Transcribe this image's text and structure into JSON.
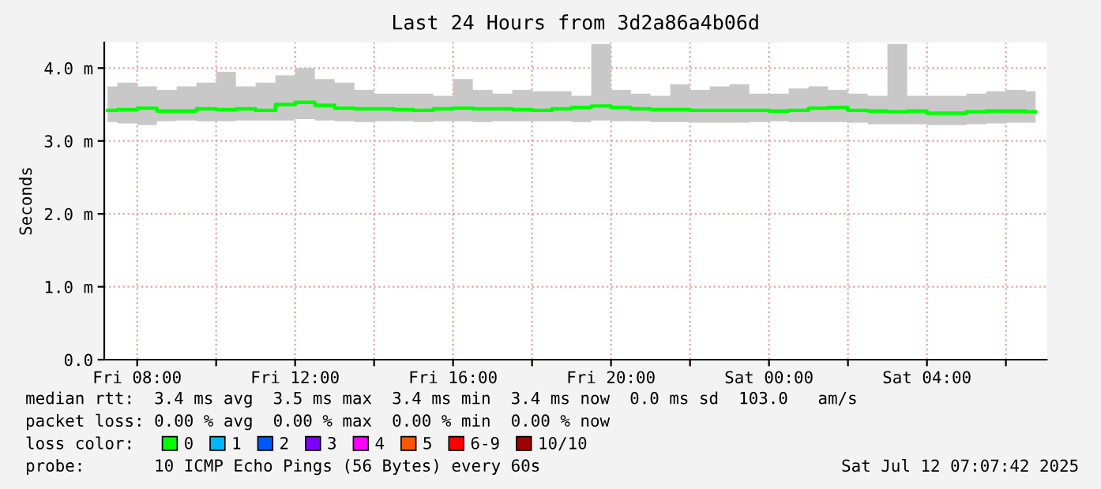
{
  "chart_data": {
    "type": "step",
    "title": "Last 24 Hours from 3d2a86a4b06d",
    "ylabel": "Seconds",
    "x": [
      "2025-07-11T07:15",
      "2025-07-11T07:45",
      "2025-07-11T08:15",
      "2025-07-11T08:45",
      "2025-07-11T09:15",
      "2025-07-11T09:45",
      "2025-07-11T10:15",
      "2025-07-11T10:45",
      "2025-07-11T11:15",
      "2025-07-11T11:45",
      "2025-07-11T12:15",
      "2025-07-11T12:45",
      "2025-07-11T13:15",
      "2025-07-11T13:45",
      "2025-07-11T14:15",
      "2025-07-11T14:45",
      "2025-07-11T15:15",
      "2025-07-11T15:45",
      "2025-07-11T16:15",
      "2025-07-11T16:45",
      "2025-07-11T17:15",
      "2025-07-11T17:45",
      "2025-07-11T18:15",
      "2025-07-11T18:45",
      "2025-07-11T19:15",
      "2025-07-11T19:45",
      "2025-07-11T20:15",
      "2025-07-11T20:45",
      "2025-07-11T21:15",
      "2025-07-11T21:45",
      "2025-07-11T22:15",
      "2025-07-11T22:45",
      "2025-07-11T23:15",
      "2025-07-11T23:45",
      "2025-07-12T00:15",
      "2025-07-12T00:45",
      "2025-07-12T01:15",
      "2025-07-12T01:45",
      "2025-07-12T02:15",
      "2025-07-12T02:45",
      "2025-07-12T03:15",
      "2025-07-12T03:45",
      "2025-07-12T04:15",
      "2025-07-12T04:45",
      "2025-07-12T05:15",
      "2025-07-12T05:45",
      "2025-07-12T06:15",
      "2025-07-12T06:45"
    ],
    "series": [
      {
        "name": "0",
        "color": "#00ff00",
        "values": [
          3.42,
          3.43,
          3.45,
          3.41,
          3.41,
          3.44,
          3.43,
          3.44,
          3.42,
          3.5,
          3.53,
          3.49,
          3.45,
          3.44,
          3.44,
          3.43,
          3.42,
          3.44,
          3.45,
          3.44,
          3.44,
          3.43,
          3.42,
          3.44,
          3.46,
          3.48,
          3.46,
          3.44,
          3.43,
          3.43,
          3.42,
          3.42,
          3.42,
          3.42,
          3.41,
          3.42,
          3.45,
          3.46,
          3.42,
          3.41,
          3.4,
          3.41,
          3.38,
          3.38,
          3.4,
          3.41,
          3.41,
          3.4
        ],
        "upper": [
          3.75,
          3.8,
          3.75,
          3.7,
          3.75,
          3.8,
          3.95,
          3.75,
          3.8,
          3.9,
          4.0,
          3.85,
          3.8,
          3.7,
          3.65,
          3.65,
          3.65,
          3.62,
          3.85,
          3.7,
          3.65,
          3.7,
          3.68,
          3.68,
          3.62,
          4.33,
          3.7,
          3.65,
          3.62,
          3.78,
          3.7,
          3.75,
          3.78,
          3.65,
          3.65,
          3.72,
          3.75,
          3.7,
          3.65,
          3.62,
          4.33,
          3.62,
          3.62,
          3.62,
          3.65,
          3.68,
          3.7,
          3.68
        ],
        "lower": [
          3.26,
          3.24,
          3.22,
          3.27,
          3.28,
          3.27,
          3.27,
          3.28,
          3.28,
          3.28,
          3.3,
          3.28,
          3.27,
          3.26,
          3.27,
          3.27,
          3.26,
          3.27,
          3.27,
          3.26,
          3.27,
          3.27,
          3.27,
          3.27,
          3.26,
          3.28,
          3.27,
          3.27,
          3.26,
          3.26,
          3.25,
          3.25,
          3.25,
          3.26,
          3.27,
          3.26,
          3.26,
          3.26,
          3.25,
          3.23,
          3.23,
          3.23,
          3.22,
          3.22,
          3.23,
          3.24,
          3.25,
          3.25
        ]
      },
      {
        "name": "1",
        "color": "#00b8ff",
        "values": [
          null,
          null,
          null,
          null,
          null,
          null,
          null,
          null,
          null,
          null,
          null,
          null,
          null,
          null,
          null,
          null,
          null,
          null,
          null,
          null,
          null,
          null,
          null,
          null,
          null,
          null,
          null,
          null,
          null,
          null,
          null,
          null,
          null,
          null,
          null,
          null,
          null,
          null,
          null,
          null,
          null,
          null,
          null,
          null,
          null,
          null,
          null,
          null
        ]
      },
      {
        "name": "2",
        "color": "#0059ff",
        "values": [
          null,
          null,
          null,
          null,
          null,
          null,
          null,
          null,
          null,
          null,
          null,
          null,
          null,
          null,
          null,
          null,
          null,
          null,
          null,
          null,
          null,
          null,
          null,
          null,
          null,
          null,
          null,
          null,
          null,
          null,
          null,
          null,
          null,
          null,
          null,
          null,
          null,
          null,
          null,
          null,
          null,
          null,
          null,
          null,
          null,
          null,
          null,
          null
        ]
      },
      {
        "name": "3",
        "color": "#7e00ff",
        "values": [
          null,
          null,
          null,
          null,
          null,
          null,
          null,
          null,
          null,
          null,
          null,
          null,
          null,
          null,
          null,
          null,
          null,
          null,
          null,
          null,
          null,
          null,
          null,
          null,
          null,
          null,
          null,
          null,
          null,
          null,
          null,
          null,
          null,
          null,
          null,
          null,
          null,
          null,
          null,
          null,
          null,
          null,
          null,
          null,
          null,
          null,
          null,
          null
        ]
      },
      {
        "name": "4",
        "color": "#ff00ff",
        "values": [
          null,
          null,
          null,
          null,
          null,
          null,
          null,
          null,
          null,
          null,
          null,
          null,
          null,
          null,
          null,
          null,
          null,
          null,
          null,
          null,
          null,
          null,
          null,
          null,
          null,
          null,
          null,
          null,
          null,
          null,
          null,
          null,
          null,
          null,
          null,
          null,
          null,
          null,
          null,
          null,
          null,
          null,
          null,
          null,
          null,
          null,
          null,
          null
        ]
      },
      {
        "name": "5",
        "color": "#ff5500",
        "values": [
          null,
          null,
          null,
          null,
          null,
          null,
          null,
          null,
          null,
          null,
          null,
          null,
          null,
          null,
          null,
          null,
          null,
          null,
          null,
          null,
          null,
          null,
          null,
          null,
          null,
          null,
          null,
          null,
          null,
          null,
          null,
          null,
          null,
          null,
          null,
          null,
          null,
          null,
          null,
          null,
          null,
          null,
          null,
          null,
          null,
          null,
          null,
          null
        ]
      },
      {
        "name": "6-9",
        "color": "#ff0000",
        "values": [
          null,
          null,
          null,
          null,
          null,
          null,
          null,
          null,
          null,
          null,
          null,
          null,
          null,
          null,
          null,
          null,
          null,
          null,
          null,
          null,
          null,
          null,
          null,
          null,
          null,
          null,
          null,
          null,
          null,
          null,
          null,
          null,
          null,
          null,
          null,
          null,
          null,
          null,
          null,
          null,
          null,
          null,
          null,
          null,
          null,
          null,
          null,
          null
        ]
      },
      {
        "name": "10/10",
        "color": "#a10000",
        "values": [
          null,
          null,
          null,
          null,
          null,
          null,
          null,
          null,
          null,
          null,
          null,
          null,
          null,
          null,
          null,
          null,
          null,
          null,
          null,
          null,
          null,
          null,
          null,
          null,
          null,
          null,
          null,
          null,
          null,
          null,
          null,
          null,
          null,
          null,
          null,
          null,
          null,
          null,
          null,
          null,
          null,
          null,
          null,
          null,
          null,
          null,
          null,
          null
        ]
      }
    ],
    "legend_title": "loss color:",
    "legend": "bottom",
    "xlim": [
      "2025-07-11T07:10",
      "2025-07-12T07:02"
    ],
    "xticks": [
      {
        "value": "2025-07-11T08:00",
        "label": "Fri 08:00"
      },
      {
        "value": "2025-07-11T10:00",
        "label": null
      },
      {
        "value": "2025-07-11T12:00",
        "label": "Fri 12:00"
      },
      {
        "value": "2025-07-11T14:00",
        "label": null
      },
      {
        "value": "2025-07-11T16:00",
        "label": "Fri 16:00"
      },
      {
        "value": "2025-07-11T18:00",
        "label": null
      },
      {
        "value": "2025-07-11T20:00",
        "label": "Fri 20:00"
      },
      {
        "value": "2025-07-11T22:00",
        "label": null
      },
      {
        "value": "2025-07-12T00:00",
        "label": "Sat 00:00"
      },
      {
        "value": "2025-07-12T02:00",
        "label": null
      },
      {
        "value": "2025-07-12T04:00",
        "label": "Sat 04:00"
      },
      {
        "value": "2025-07-12T06:00",
        "label": null
      }
    ],
    "ylim": [
      0,
      4.35
    ],
    "yticks": [
      {
        "value": 0,
        "label": "0.0"
      },
      {
        "value": 1,
        "label": "1.0 m"
      },
      {
        "value": 2,
        "label": "2.0 m"
      },
      {
        "value": 3,
        "label": "3.0 m"
      },
      {
        "value": 4,
        "label": "4.0 m"
      }
    ],
    "grid": true,
    "annotations": [
      "median rtt:  3.4 ms avg  3.5 ms max  3.4 ms min  3.4 ms now  0.0 ms sd  103.0   am/s",
      "packet loss: 0.00 % avg  0.00 % max  0.00 % min  0.00 % now",
      "probe:       10 ICMP Echo Pings (56 Bytes) every 60s",
      "Sat Jul 12 07:07:42 2025"
    ]
  }
}
